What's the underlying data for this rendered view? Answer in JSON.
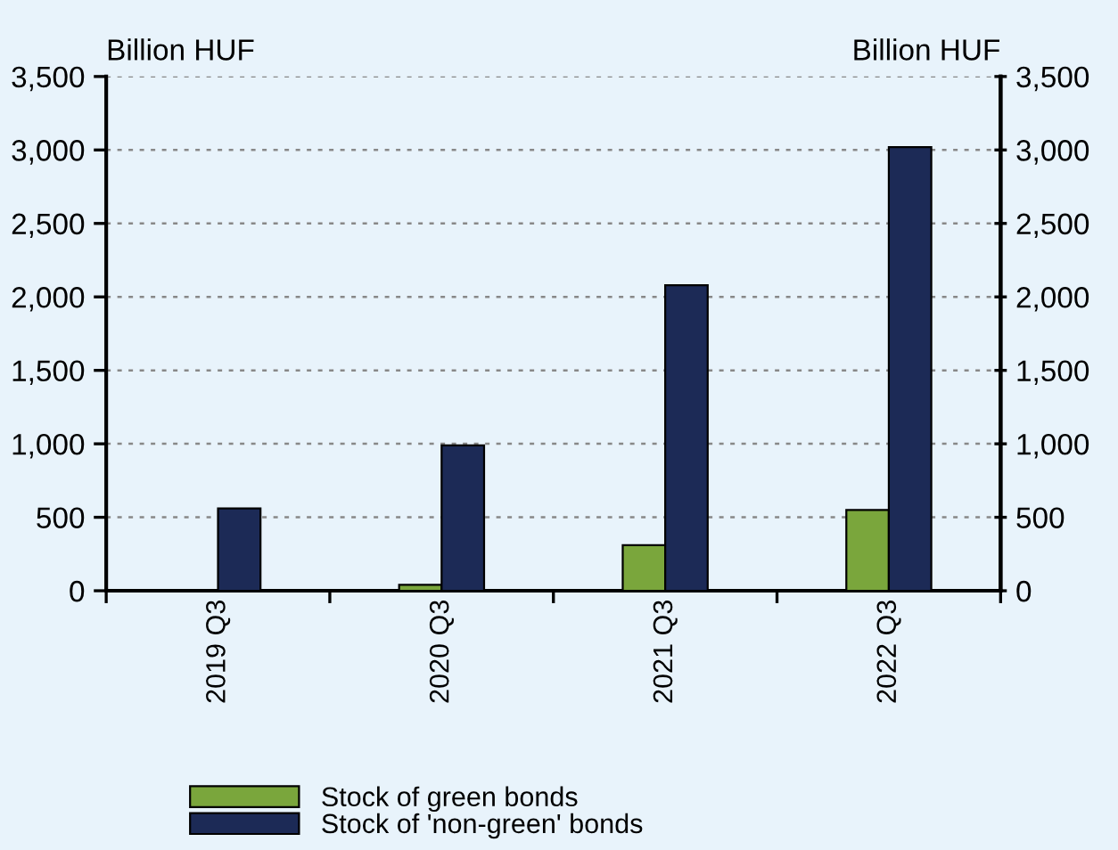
{
  "chart_data": {
    "type": "bar",
    "ylabel": "Billion HUF",
    "y2label": "Billion HUF",
    "categories": [
      "2019 Q3",
      "2020 Q3",
      "2021 Q3",
      "2022 Q3"
    ],
    "series": [
      {
        "name": "Stock of green bonds",
        "color": "#7aa63c",
        "values": [
          null,
          40,
          310,
          550
        ]
      },
      {
        "name": "Stock of 'non-green' bonds",
        "color": "#1c2a56",
        "values": [
          560,
          990,
          2080,
          3020
        ]
      }
    ],
    "ylim": [
      0,
      3500
    ],
    "yticks": [
      {
        "value": 0,
        "label": "0"
      },
      {
        "value": 500,
        "label": "500"
      },
      {
        "value": 1000,
        "label": "1,000"
      },
      {
        "value": 1500,
        "label": "1,500"
      },
      {
        "value": 2000,
        "label": "2,000"
      },
      {
        "value": 2500,
        "label": "2,500"
      },
      {
        "value": 3000,
        "label": "3,000"
      },
      {
        "value": 3500,
        "label": "3,500"
      }
    ],
    "y2lim": [
      0,
      3500
    ],
    "y2ticks": [
      {
        "value": 0,
        "label": "0"
      },
      {
        "value": 500,
        "label": "500"
      },
      {
        "value": 1000,
        "label": "1,000"
      },
      {
        "value": 1500,
        "label": "1,500"
      },
      {
        "value": 2000,
        "label": "2,000"
      },
      {
        "value": 2500,
        "label": "2,500"
      },
      {
        "value": 3000,
        "label": "3,000"
      },
      {
        "value": 3500,
        "label": "3,500"
      }
    ],
    "grid": "y",
    "legend": "bottom"
  }
}
